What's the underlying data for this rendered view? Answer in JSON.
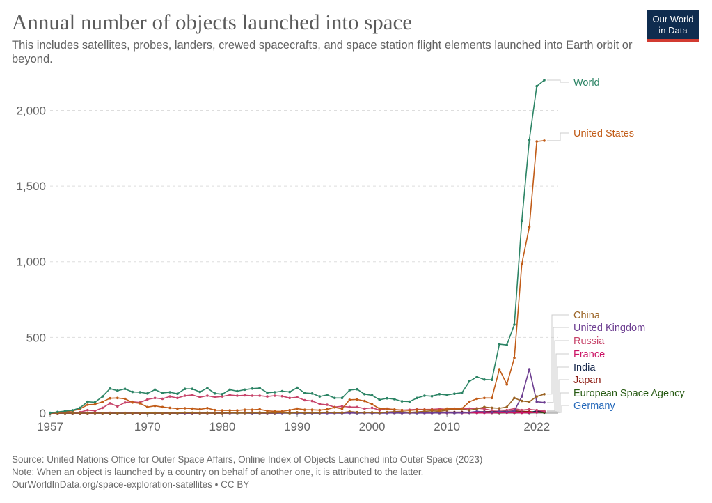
{
  "header": {
    "title": "Annual number of objects launched into space",
    "subtitle": "This includes satellites, probes, landers, crewed spacecrafts, and space station flight elements launched into Earth orbit or beyond.",
    "logo_line1": "Our World",
    "logo_line2": "in Data"
  },
  "footer": {
    "source": "Source: United Nations Office for Outer Space Affairs, Online Index of Objects Launched into Outer Space (2023)",
    "note": "Note: When an object is launched by a country on behalf of another one, it is attributed to the latter.",
    "url": "OurWorldInData.org/space-exploration-satellites • CC BY"
  },
  "chart_data": {
    "type": "line",
    "title": "Annual number of objects launched into space",
    "xlim": [
      1957,
      2023
    ],
    "ylim": [
      0,
      2200
    ],
    "yticks": [
      0,
      500,
      1000,
      1500,
      2000
    ],
    "ytick_labels": [
      "0",
      "500",
      "1,000",
      "1,500",
      "2,000"
    ],
    "xticks": [
      1957,
      1970,
      1980,
      1990,
      2000,
      2010,
      2022
    ],
    "xtick_labels": [
      "1957",
      "1970",
      "1980",
      "1990",
      "2000",
      "2010",
      "2022"
    ],
    "grid": "horizontal dashed",
    "legend": "right, labels at line ends",
    "x": [
      1957,
      1958,
      1959,
      1960,
      1961,
      1962,
      1963,
      1964,
      1965,
      1966,
      1967,
      1968,
      1969,
      1970,
      1971,
      1972,
      1973,
      1974,
      1975,
      1976,
      1977,
      1978,
      1979,
      1980,
      1981,
      1982,
      1983,
      1984,
      1985,
      1986,
      1987,
      1988,
      1989,
      1990,
      1991,
      1992,
      1993,
      1994,
      1995,
      1996,
      1997,
      1998,
      1999,
      2000,
      2001,
      2002,
      2003,
      2004,
      2005,
      2006,
      2007,
      2008,
      2009,
      2010,
      2011,
      2012,
      2013,
      2014,
      2015,
      2016,
      2017,
      2018,
      2019,
      2020,
      2021,
      2022,
      2023
    ],
    "series": [
      {
        "name": "World",
        "color": "#2c8465",
        "values": [
          2,
          8,
          14,
          19,
          35,
          75,
          72,
          110,
          162,
          148,
          160,
          140,
          138,
          130,
          155,
          133,
          138,
          128,
          160,
          160,
          140,
          165,
          130,
          125,
          155,
          145,
          155,
          162,
          165,
          135,
          138,
          145,
          140,
          168,
          133,
          130,
          110,
          120,
          100,
          100,
          152,
          158,
          125,
          118,
          88,
          98,
          92,
          78,
          76,
          100,
          115,
          112,
          125,
          120,
          128,
          135,
          210,
          240,
          222,
          220,
          455,
          450,
          585,
          1270,
          1805,
          2160,
          2200
        ]
      },
      {
        "name": "United States",
        "color": "#c15c18",
        "values": [
          0,
          5,
          10,
          15,
          28,
          55,
          58,
          75,
          98,
          100,
          95,
          70,
          65,
          40,
          48,
          40,
          35,
          30,
          32,
          30,
          25,
          33,
          20,
          18,
          18,
          18,
          22,
          22,
          25,
          15,
          12,
          12,
          20,
          30,
          22,
          22,
          20,
          25,
          38,
          28,
          88,
          90,
          80,
          58,
          30,
          28,
          24,
          20,
          18,
          22,
          22,
          22,
          20,
          30,
          28,
          30,
          75,
          95,
          100,
          100,
          290,
          190,
          365,
          985,
          1230,
          1795,
          1800
        ]
      },
      {
        "name": "China",
        "color": "#9a6324",
        "values": [
          0,
          0,
          0,
          0,
          0,
          0,
          0,
          0,
          0,
          0,
          0,
          0,
          0,
          1,
          1,
          0,
          0,
          1,
          3,
          2,
          0,
          1,
          0,
          0,
          2,
          1,
          1,
          3,
          1,
          2,
          2,
          4,
          0,
          5,
          2,
          3,
          2,
          6,
          3,
          3,
          10,
          6,
          4,
          5,
          2,
          7,
          10,
          10,
          5,
          8,
          12,
          15,
          12,
          20,
          25,
          25,
          20,
          28,
          40,
          35,
          32,
          40,
          100,
          80,
          75,
          110,
          125
        ]
      },
      {
        "name": "United Kingdom",
        "color": "#6d3e91",
        "values": [
          0,
          0,
          0,
          0,
          0,
          1,
          0,
          0,
          0,
          1,
          1,
          0,
          0,
          1,
          2,
          0,
          0,
          1,
          0,
          0,
          0,
          1,
          0,
          0,
          0,
          1,
          1,
          0,
          0,
          0,
          0,
          1,
          2,
          2,
          1,
          0,
          0,
          0,
          1,
          0,
          1,
          1,
          2,
          1,
          0,
          1,
          2,
          1,
          1,
          1,
          1,
          1,
          2,
          3,
          1,
          2,
          5,
          12,
          8,
          6,
          10,
          8,
          15,
          110,
          290,
          75,
          70
        ]
      },
      {
        "name": "Russia",
        "color": "#c7446a",
        "values": [
          1,
          1,
          3,
          4,
          6,
          20,
          15,
          35,
          65,
          45,
          70,
          75,
          70,
          90,
          100,
          95,
          110,
          100,
          115,
          120,
          105,
          115,
          105,
          110,
          120,
          115,
          118,
          115,
          115,
          110,
          115,
          112,
          100,
          105,
          85,
          80,
          60,
          55,
          40,
          45,
          40,
          40,
          30,
          35,
          20,
          30,
          22,
          20,
          22,
          25,
          24,
          25,
          28,
          26,
          30,
          28,
          30,
          32,
          28,
          18,
          20,
          20,
          30,
          20,
          25,
          20,
          15
        ]
      },
      {
        "name": "France",
        "color": "#cc1466",
        "values": [
          0,
          0,
          0,
          0,
          0,
          0,
          0,
          0,
          2,
          1,
          2,
          0,
          0,
          1,
          1,
          0,
          0,
          1,
          1,
          0,
          0,
          0,
          0,
          0,
          1,
          2,
          1,
          2,
          1,
          1,
          1,
          2,
          2,
          3,
          2,
          2,
          2,
          3,
          2,
          3,
          3,
          3,
          2,
          3,
          2,
          3,
          2,
          1,
          2,
          2,
          1,
          1,
          2,
          2,
          2,
          1,
          3,
          2,
          2,
          2,
          3,
          3,
          3,
          2,
          3,
          5,
          10
        ]
      },
      {
        "name": "India",
        "color": "#13254a",
        "values": [
          0,
          0,
          0,
          0,
          0,
          0,
          0,
          0,
          0,
          0,
          0,
          0,
          0,
          0,
          0,
          0,
          0,
          0,
          1,
          0,
          0,
          0,
          1,
          1,
          2,
          2,
          1,
          0,
          0,
          0,
          1,
          1,
          0,
          1,
          0,
          1,
          1,
          2,
          2,
          1,
          2,
          0,
          3,
          1,
          2,
          3,
          2,
          1,
          2,
          1,
          3,
          3,
          2,
          2,
          4,
          3,
          2,
          5,
          5,
          8,
          10,
          12,
          8,
          5,
          2,
          15,
          10
        ]
      },
      {
        "name": "Japan",
        "color": "#8c1c13",
        "values": [
          0,
          0,
          0,
          0,
          0,
          0,
          0,
          0,
          0,
          0,
          0,
          0,
          0,
          1,
          1,
          1,
          1,
          1,
          2,
          2,
          3,
          3,
          2,
          3,
          3,
          3,
          4,
          5,
          4,
          5,
          4,
          3,
          5,
          4,
          3,
          4,
          2,
          3,
          3,
          3,
          3,
          4,
          4,
          3,
          3,
          4,
          5,
          4,
          4,
          5,
          5,
          5,
          6,
          7,
          6,
          7,
          5,
          8,
          10,
          10,
          10,
          12,
          15,
          12,
          10,
          8,
          8
        ]
      },
      {
        "name": "European Space Agency",
        "color": "#285b14",
        "values": [
          0,
          0,
          0,
          0,
          0,
          0,
          0,
          0,
          0,
          0,
          0,
          0,
          0,
          0,
          0,
          0,
          0,
          0,
          1,
          0,
          1,
          2,
          1,
          1,
          2,
          1,
          2,
          1,
          1,
          2,
          1,
          2,
          1,
          2,
          2,
          1,
          1,
          2,
          2,
          1,
          2,
          1,
          2,
          1,
          2,
          2,
          1,
          1,
          2,
          1,
          2,
          2,
          1,
          2,
          1,
          2,
          3,
          2,
          3,
          2,
          1,
          3,
          2,
          3,
          2,
          5,
          3
        ]
      },
      {
        "name": "Germany",
        "color": "#286bbb",
        "values": [
          0,
          0,
          0,
          0,
          0,
          0,
          0,
          0,
          0,
          0,
          0,
          0,
          0,
          1,
          1,
          0,
          0,
          1,
          1,
          1,
          0,
          1,
          0,
          0,
          1,
          0,
          1,
          1,
          1,
          1,
          0,
          1,
          2,
          2,
          1,
          1,
          1,
          1,
          1,
          1,
          2,
          1,
          1,
          2,
          1,
          1,
          2,
          2,
          2,
          1,
          2,
          3,
          2,
          3,
          2,
          3,
          3,
          4,
          4,
          5,
          5,
          5,
          5,
          5,
          6,
          8,
          5
        ]
      }
    ]
  }
}
